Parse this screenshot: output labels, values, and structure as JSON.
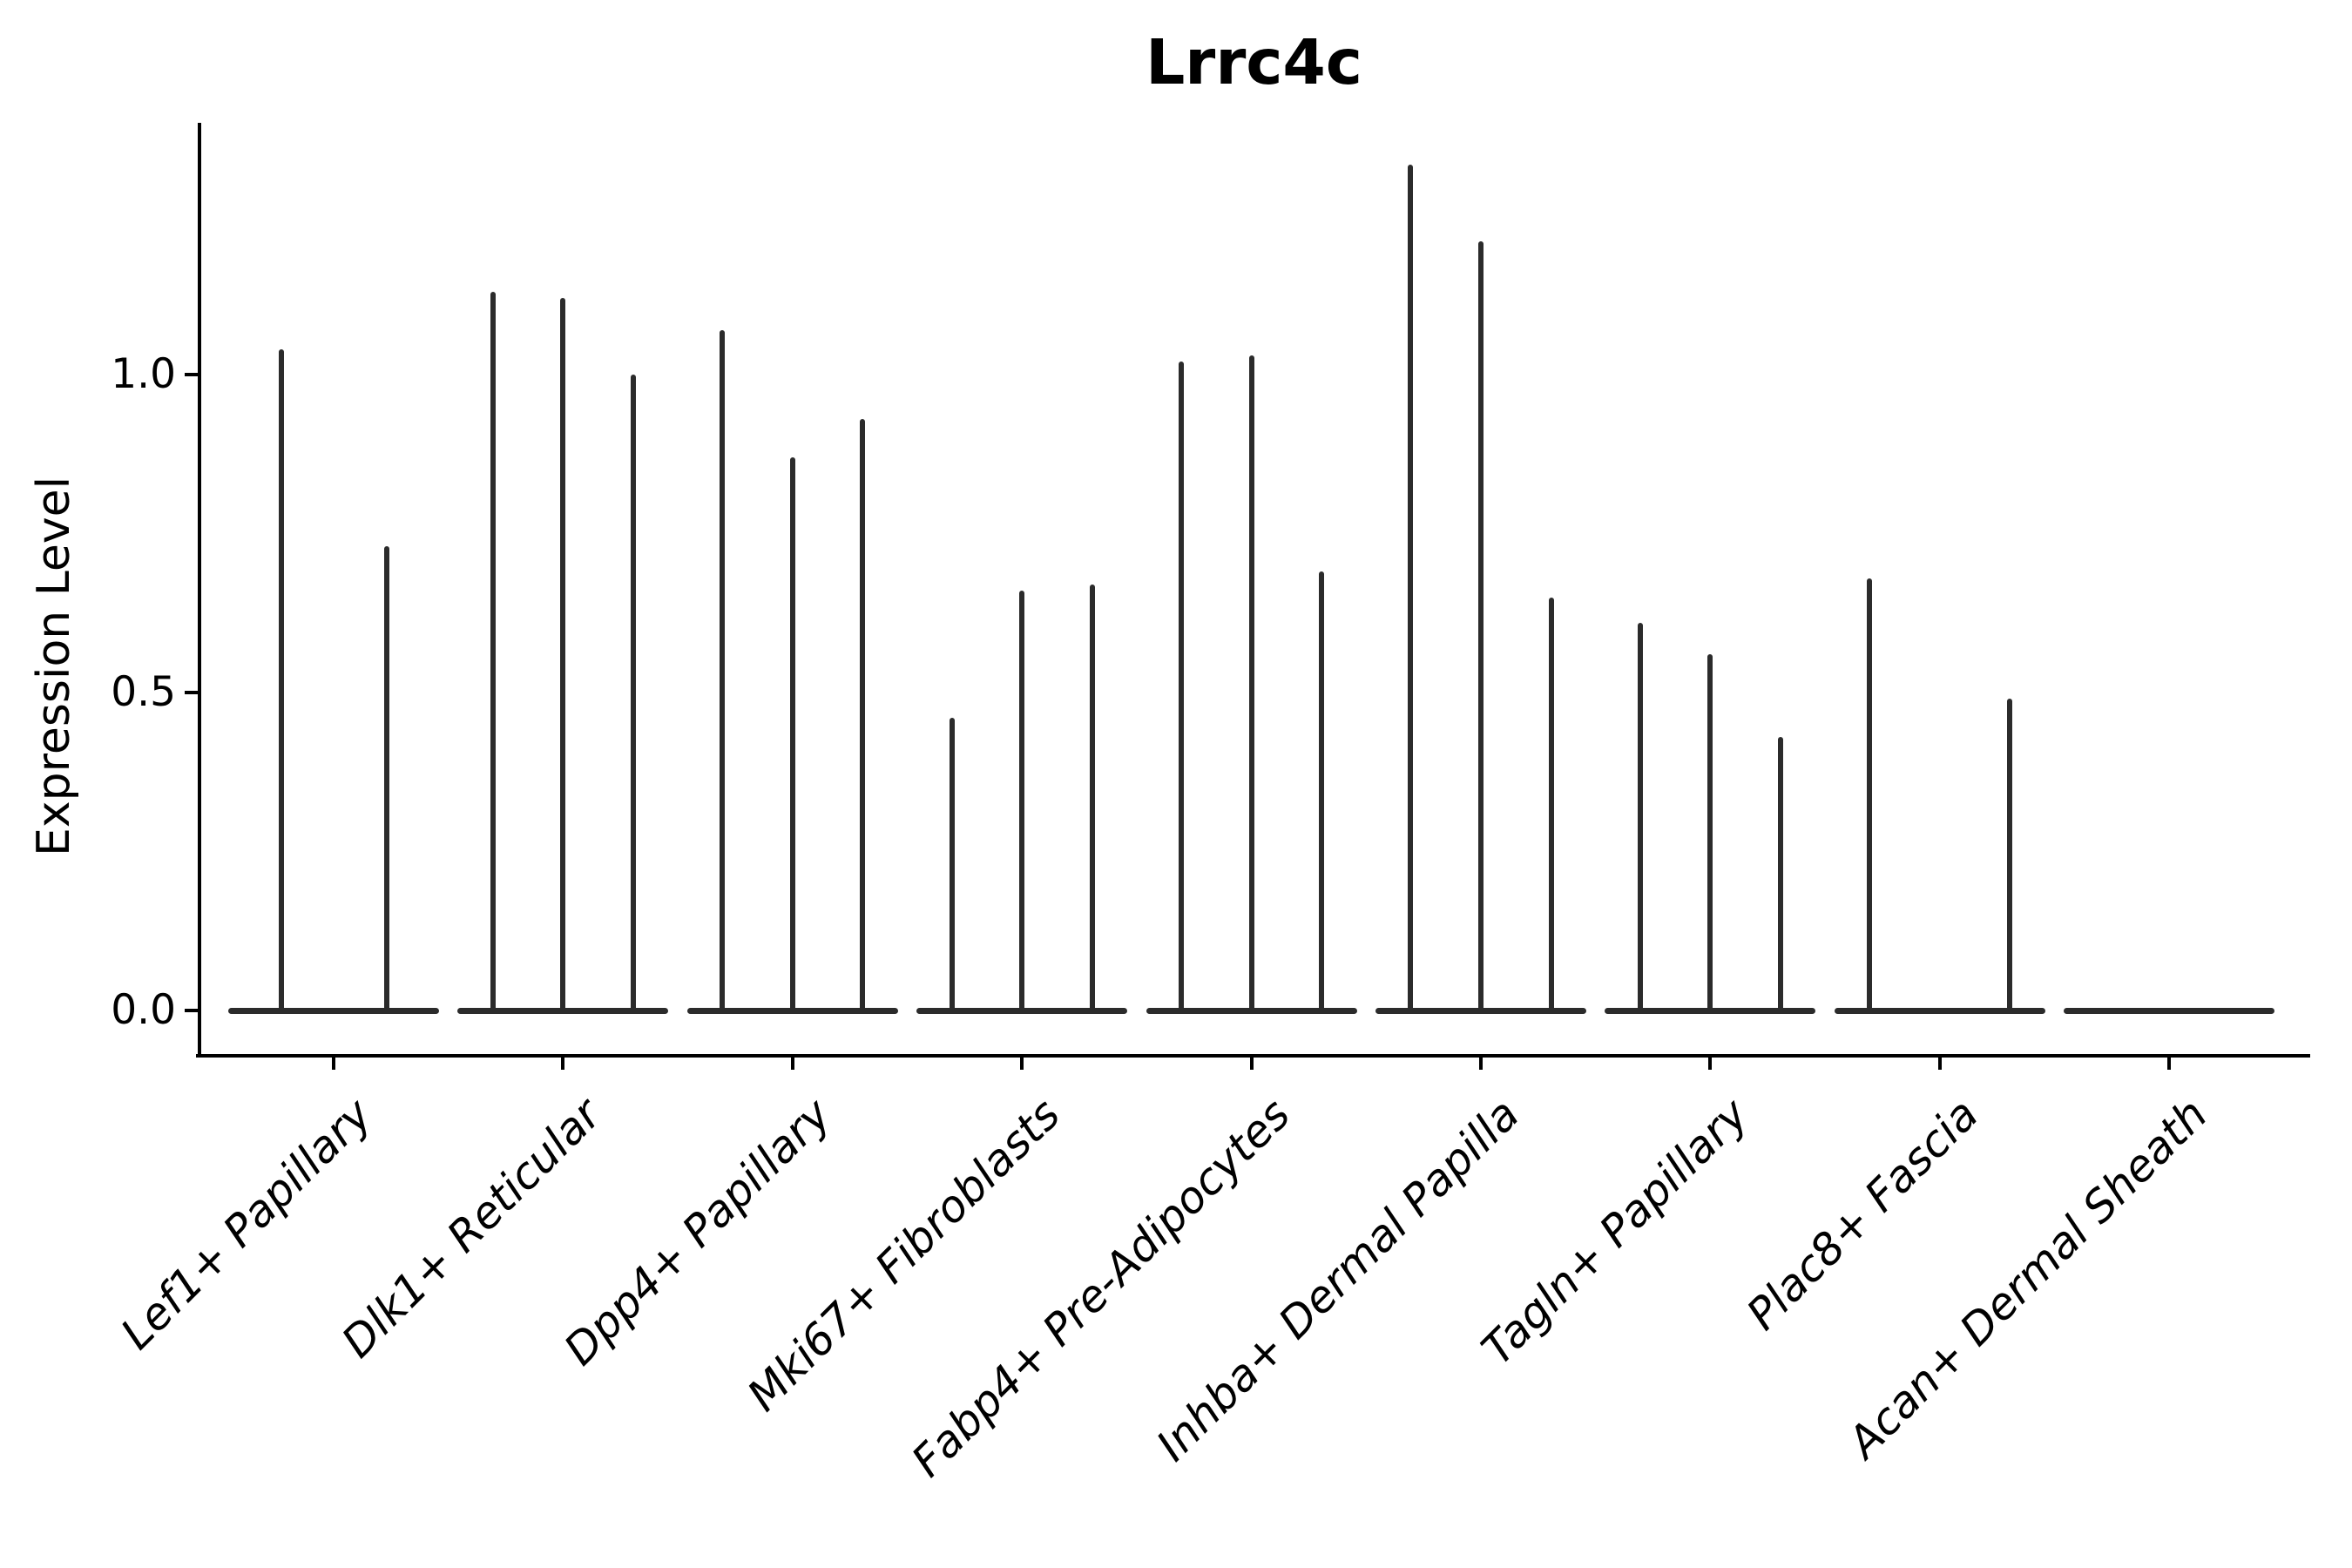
{
  "title": "Lrrc4c",
  "colors": {
    "violin": "#2b2b2b",
    "axis": "#000000",
    "text": "#000000",
    "background": "#ffffff"
  },
  "chart_data": {
    "type": "violin",
    "title": "Lrrc4c",
    "xlabel": "",
    "ylabel": "Expression Level",
    "grid": false,
    "legend_position": "none",
    "ytick_labels": [
      "0.0",
      "0.5",
      "1.0"
    ],
    "ytick_values": [
      0.0,
      0.5,
      1.0
    ],
    "ylim": [
      -0.07,
      1.4
    ],
    "categories": [
      "Lef1+ Papillary",
      "Dlk1+ Reticular",
      "Dpp4+ Papillary",
      "Mki67+ Fibroblasts",
      "Fabp4+ Pre-Adipocytes",
      "Inhba+ Dermal Papilla",
      "Tagln+ Papillary",
      "Plac8+ Fascia",
      "Acan+ Dermal Sheath"
    ],
    "groups": [
      {
        "category": "Lef1+ Papillary",
        "violin_maxima": [
          1.04,
          0.73
        ]
      },
      {
        "category": "Dlk1+ Reticular",
        "violin_maxima": [
          1.13,
          1.12,
          1.0
        ]
      },
      {
        "category": "Dpp4+ Papillary",
        "violin_maxima": [
          1.07,
          0.87,
          0.93
        ]
      },
      {
        "category": "Mki67+ Fibroblasts",
        "violin_maxima": [
          0.46,
          0.66,
          0.67
        ]
      },
      {
        "category": "Fabp4+ Pre-Adipocytes",
        "violin_maxima": [
          1.02,
          1.03,
          0.69
        ]
      },
      {
        "category": "Inhba+ Dermal Papilla",
        "violin_maxima": [
          1.33,
          1.21,
          0.65
        ]
      },
      {
        "category": "Tagln+ Papillary",
        "violin_maxima": [
          0.61,
          0.56,
          0.43
        ]
      },
      {
        "category": "Plac8+ Fascia",
        "violin_maxima": [
          0.68,
          0.0,
          0.49
        ]
      },
      {
        "category": "Acan+ Dermal Sheath",
        "violin_maxima": [
          0.0,
          0.0,
          0.0
        ]
      }
    ],
    "description": "Violin plot of Lrrc4c expression; each violin collapses to a flat bar at 0 with a narrow spike reaching its maximum expression value."
  }
}
